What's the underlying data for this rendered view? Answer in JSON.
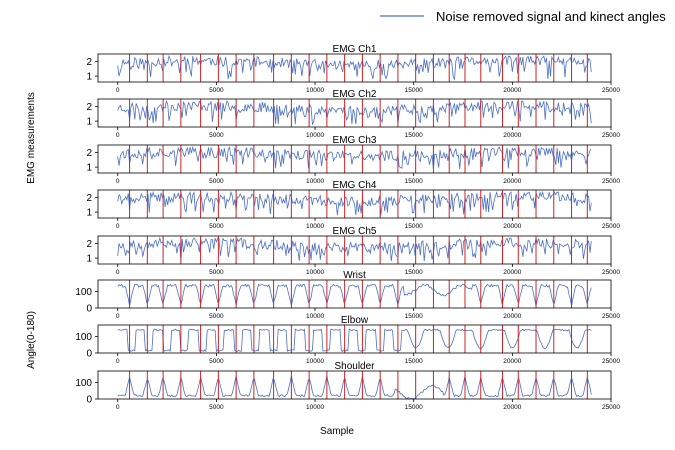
{
  "chart_data": {
    "type": "line",
    "legend": {
      "label": "Noise removed signal and kinect angles",
      "placement": "top-right",
      "color": "#4a6fc9"
    },
    "colors": {
      "signal": "#4a6fc9",
      "marker": "#cc2222"
    },
    "xlabel": "Sample",
    "xlim": [
      -1000,
      25000
    ],
    "xticks": [
      0,
      5000,
      10000,
      15000,
      20000,
      25000
    ],
    "group_labels": {
      "emg": "EMG measurements",
      "angle": "Angle(0-180)"
    },
    "markers_x": [
      600,
      1500,
      2300,
      3200,
      4200,
      5100,
      6000,
      6900,
      7900,
      8800,
      9700,
      10600,
      11500,
      12400,
      13300,
      14200,
      15100,
      16000,
      16800,
      17600,
      18400,
      19500,
      20300,
      21200,
      22100,
      23000,
      23800
    ],
    "panels": [
      {
        "title": "EMG Ch1",
        "kind": "emg",
        "ylim": [
          0.6,
          2.5
        ],
        "yticks": [
          1,
          2
        ],
        "seed": 11
      },
      {
        "title": "EMG Ch2",
        "kind": "emg",
        "ylim": [
          0.6,
          2.5
        ],
        "yticks": [
          1,
          2
        ],
        "seed": 23
      },
      {
        "title": "EMG Ch3",
        "kind": "emg",
        "ylim": [
          0.6,
          2.5
        ],
        "yticks": [
          1,
          2
        ],
        "seed": 37
      },
      {
        "title": "EMG Ch4",
        "kind": "emg",
        "ylim": [
          0.6,
          2.5
        ],
        "yticks": [
          1,
          2
        ],
        "seed": 41
      },
      {
        "title": "EMG Ch5",
        "kind": "emg",
        "ylim": [
          0.6,
          2.5
        ],
        "yticks": [
          1,
          2
        ],
        "seed": 53
      },
      {
        "title": "Wrist",
        "kind": "wrist",
        "ylim": [
          0,
          170
        ],
        "yticks": [
          0,
          100
        ],
        "seed": 61
      },
      {
        "title": "Elbow",
        "kind": "elbow",
        "ylim": [
          0,
          170
        ],
        "yticks": [
          0,
          100
        ],
        "seed": 71
      },
      {
        "title": "Shoulder",
        "kind": "shoulder",
        "ylim": [
          0,
          170
        ],
        "yticks": [
          0,
          100
        ],
        "seed": 83
      }
    ]
  }
}
